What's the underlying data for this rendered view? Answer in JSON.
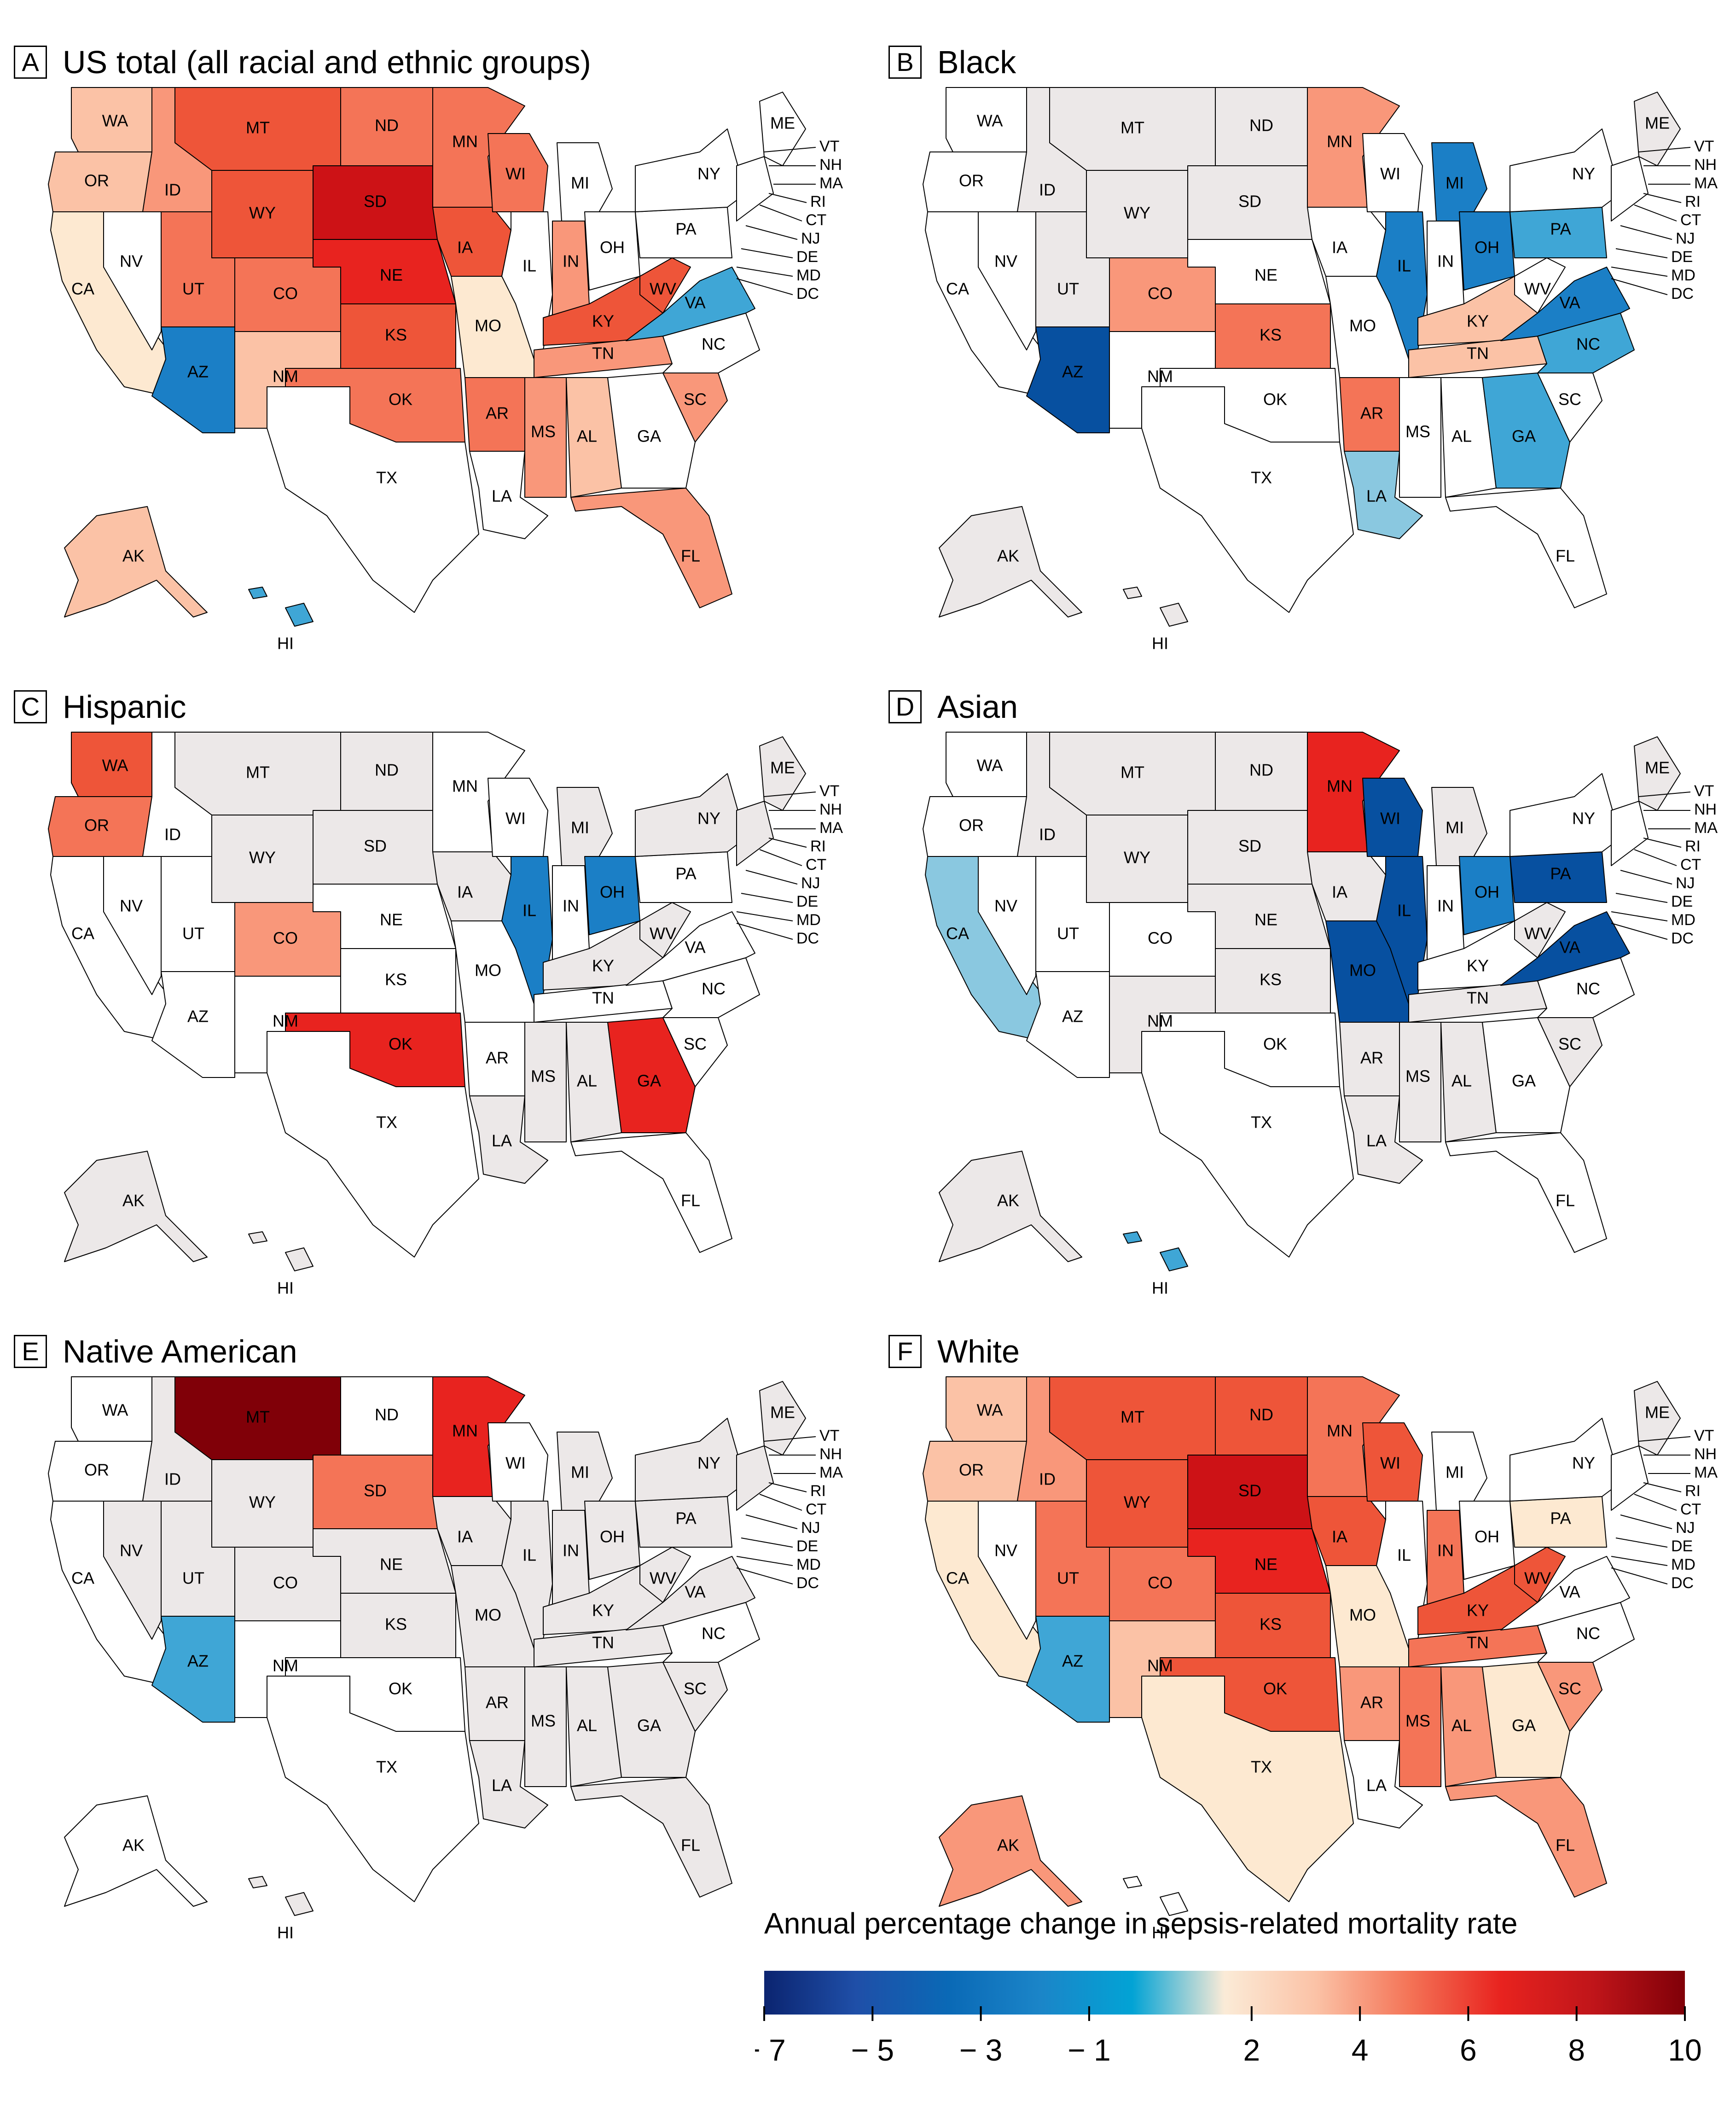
{
  "colors": {
    "white": "#ffffff",
    "grey": "#ece8e8",
    "cream": "#fde9d1",
    "peach": "#fbc2a6",
    "salmon": "#f9977a",
    "coral": "#f47457",
    "red": "#ee5539",
    "bright_red": "#e8231f",
    "dark_red": "#cd1216",
    "maroon": "#800008",
    "pale_blue": "#8ac8e0",
    "light_blue": "#3fa6d6",
    "blue": "#1b7fc6",
    "mid_blue": "#0a69b6",
    "dark_blue": "#0750a0",
    "border": "#000000"
  },
  "panels": [
    {
      "letter": "A",
      "title": "US total (all racial and ethnic groups)",
      "fills": {
        "WA": "peach",
        "OR": "peach",
        "CA": "cream",
        "NV": "white",
        "ID": "salmon",
        "MT": "red",
        "WY": "red",
        "UT": "coral",
        "CO": "coral",
        "AZ": "blue",
        "NM": "peach",
        "ND": "coral",
        "SD": "dark_red",
        "NE": "bright_red",
        "KS": "red",
        "OK": "coral",
        "TX": "white",
        "MN": "coral",
        "IA": "red",
        "MO": "cream",
        "AR": "coral",
        "LA": "white",
        "WI": "coral",
        "IL": "white",
        "MI": "white",
        "IN": "salmon",
        "OH": "white",
        "KY": "red",
        "TN": "salmon",
        "MS": "salmon",
        "AL": "peach",
        "GA": "white",
        "FL": "salmon",
        "SC": "salmon",
        "NC": "white",
        "VA": "light_blue",
        "WV": "red",
        "PA": "white",
        "NY": "white",
        "ME": "white",
        "AK": "peach",
        "HI": "light_blue"
      }
    },
    {
      "letter": "B",
      "title": "Black",
      "fills": {
        "WA": "white",
        "OR": "white",
        "CA": "white",
        "NV": "white",
        "ID": "grey",
        "MT": "grey",
        "WY": "grey",
        "UT": "grey",
        "CO": "salmon",
        "AZ": "dark_blue",
        "NM": "white",
        "ND": "grey",
        "SD": "grey",
        "NE": "white",
        "KS": "coral",
        "OK": "white",
        "TX": "white",
        "MN": "salmon",
        "IA": "white",
        "MO": "white",
        "AR": "coral",
        "LA": "pale_blue",
        "WI": "white",
        "IL": "blue",
        "MI": "blue",
        "IN": "white",
        "OH": "blue",
        "KY": "peach",
        "TN": "peach",
        "MS": "white",
        "AL": "white",
        "GA": "light_blue",
        "FL": "white",
        "SC": "white",
        "NC": "light_blue",
        "VA": "blue",
        "WV": "white",
        "PA": "light_blue",
        "NY": "white",
        "ME": "grey",
        "AK": "grey",
        "HI": "grey"
      }
    },
    {
      "letter": "C",
      "title": "Hispanic",
      "fills": {
        "WA": "red",
        "OR": "coral",
        "CA": "white",
        "NV": "white",
        "ID": "white",
        "MT": "grey",
        "WY": "grey",
        "UT": "white",
        "CO": "salmon",
        "AZ": "white",
        "NM": "white",
        "ND": "grey",
        "SD": "grey",
        "NE": "white",
        "KS": "white",
        "OK": "bright_red",
        "TX": "white",
        "MN": "white",
        "IA": "grey",
        "MO": "white",
        "AR": "white",
        "LA": "grey",
        "WI": "white",
        "IL": "blue",
        "MI": "grey",
        "IN": "white",
        "OH": "blue",
        "KY": "grey",
        "TN": "white",
        "MS": "grey",
        "AL": "grey",
        "GA": "bright_red",
        "FL": "white",
        "SC": "white",
        "NC": "white",
        "VA": "white",
        "WV": "grey",
        "PA": "white",
        "NY": "grey",
        "ME": "grey",
        "AK": "grey",
        "HI": "grey"
      }
    },
    {
      "letter": "D",
      "title": "Asian",
      "fills": {
        "WA": "white",
        "OR": "white",
        "CA": "pale_blue",
        "NV": "white",
        "ID": "grey",
        "MT": "grey",
        "WY": "grey",
        "UT": "white",
        "CO": "white",
        "AZ": "white",
        "NM": "grey",
        "ND": "grey",
        "SD": "grey",
        "NE": "grey",
        "KS": "grey",
        "OK": "white",
        "TX": "white",
        "MN": "bright_red",
        "IA": "grey",
        "MO": "dark_blue",
        "AR": "grey",
        "LA": "grey",
        "WI": "dark_blue",
        "IL": "dark_blue",
        "MI": "grey",
        "IN": "white",
        "OH": "blue",
        "KY": "white",
        "TN": "grey",
        "MS": "grey",
        "AL": "grey",
        "GA": "white",
        "FL": "white",
        "SC": "grey",
        "NC": "white",
        "VA": "dark_blue",
        "WV": "grey",
        "PA": "dark_blue",
        "NY": "white",
        "ME": "grey",
        "AK": "grey",
        "HI": "light_blue"
      }
    },
    {
      "letter": "E",
      "title": "Native American",
      "fills": {
        "WA": "white",
        "OR": "white",
        "CA": "white",
        "NV": "grey",
        "ID": "grey",
        "MT": "maroon",
        "WY": "grey",
        "UT": "grey",
        "CO": "grey",
        "AZ": "light_blue",
        "NM": "white",
        "ND": "white",
        "SD": "coral",
        "NE": "grey",
        "KS": "grey",
        "OK": "white",
        "TX": "white",
        "MN": "bright_red",
        "IA": "grey",
        "MO": "grey",
        "AR": "grey",
        "LA": "grey",
        "WI": "white",
        "IL": "grey",
        "MI": "grey",
        "IN": "grey",
        "OH": "grey",
        "KY": "grey",
        "TN": "grey",
        "MS": "grey",
        "AL": "grey",
        "GA": "grey",
        "FL": "grey",
        "SC": "grey",
        "NC": "white",
        "VA": "grey",
        "WV": "grey",
        "PA": "grey",
        "NY": "grey",
        "ME": "grey",
        "AK": "white",
        "HI": "grey"
      }
    },
    {
      "letter": "F",
      "title": "White",
      "fills": {
        "WA": "peach",
        "OR": "peach",
        "CA": "cream",
        "NV": "white",
        "ID": "salmon",
        "MT": "red",
        "WY": "red",
        "UT": "coral",
        "CO": "coral",
        "AZ": "light_blue",
        "NM": "peach",
        "ND": "red",
        "SD": "dark_red",
        "NE": "bright_red",
        "KS": "red",
        "OK": "red",
        "TX": "cream",
        "MN": "coral",
        "IA": "red",
        "MO": "cream",
        "AR": "salmon",
        "LA": "white",
        "WI": "red",
        "IL": "white",
        "MI": "white",
        "IN": "coral",
        "OH": "white",
        "KY": "red",
        "TN": "coral",
        "MS": "coral",
        "AL": "salmon",
        "GA": "cream",
        "FL": "salmon",
        "SC": "salmon",
        "NC": "white",
        "VA": "white",
        "WV": "red",
        "PA": "cream",
        "NY": "white",
        "ME": "grey",
        "AK": "salmon",
        "HI": "white"
      }
    }
  ],
  "northeast_labels": [
    "VT",
    "NH",
    "MA",
    "RI",
    "CT",
    "NJ",
    "DE",
    "MD",
    "DC"
  ],
  "legend": {
    "title": "Annual percentage change in sepsis-related mortality rate",
    "ticks": [
      "− 7",
      "− 5",
      "− 3",
      "− 1",
      "2",
      "4",
      "6",
      "8",
      "10"
    ],
    "tick_values": [
      -7,
      -5,
      -3,
      -1,
      2,
      4,
      6,
      8,
      10
    ],
    "range": [
      -7,
      10
    ],
    "gradient": [
      "#0b2470",
      "#1f4fa8",
      "#0a69b6",
      "#1b85c8",
      "#02a3d5",
      "#fbebd7",
      "#fbc2a6",
      "#f47457",
      "#e8231f",
      "#c0151a",
      "#800008"
    ]
  }
}
